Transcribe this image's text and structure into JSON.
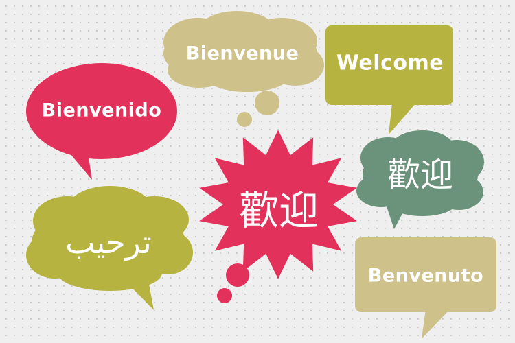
{
  "bubbles": {
    "bienvenue": {
      "text": "Bienvenue",
      "color": "#cec18a"
    },
    "welcome": {
      "text": "Welcome",
      "color": "#b6b341"
    },
    "bienvenido": {
      "text": "Bienvenido",
      "color": "#e2315a"
    },
    "chinese_center": {
      "text": "歡迎",
      "color": "#e2315a"
    },
    "chinese_right": {
      "text": "歡迎",
      "color": "#6b927a"
    },
    "arabic": {
      "text": "ترحيب",
      "color": "#b6b341"
    },
    "benvenuto": {
      "text": "Benvenuto",
      "color": "#cec18a"
    }
  },
  "background": {
    "color": "#efefef",
    "dot_color": "#c9c9c9"
  }
}
